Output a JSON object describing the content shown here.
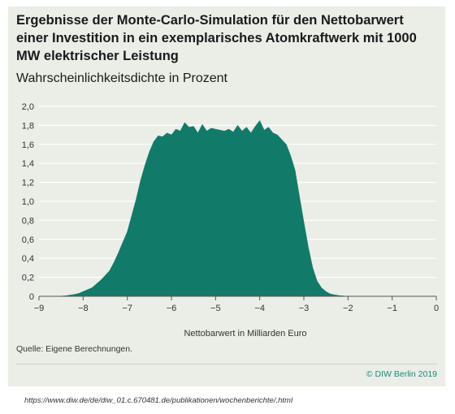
{
  "header": {
    "title": "Ergebnisse der Monte-Carlo-Simulation für den Nettobarwert einer Investition in ein exemplarisches Atomkraftwerk mit 1000 MW elektrischer Leistung",
    "subtitle": "Wahrscheinlichkeitsdichte in Prozent"
  },
  "footer": {
    "source": "Quelle: Eigene Berechnungen.",
    "credit": "© DIW Berlin 2019",
    "url": "https://www.diw.de/de/diw_01.c.670481.de/publikationen/wochenberichte/.html"
  },
  "colors": {
    "fill": "#127a69",
    "panel": "#eaeee7",
    "grid": "#ffffff",
    "credit": "#1b8a7a"
  },
  "chart_data": {
    "type": "area",
    "title": "",
    "xlabel": "Nettobarwert in Milliarden Euro",
    "ylabel": "Wahrscheinlichkeitsdichte in Prozent",
    "xlim": [
      -9,
      0
    ],
    "ylim": [
      0,
      2.0
    ],
    "grid": true,
    "x_ticks": [
      -9,
      -8,
      -7,
      -6,
      -5,
      -4,
      -3,
      -2,
      -1,
      0
    ],
    "x_tick_labels": [
      "−9",
      "−8",
      "−7",
      "−6",
      "−5",
      "−4",
      "−3",
      "−2",
      "−1",
      "0"
    ],
    "y_ticks": [
      0,
      0.2,
      0.4,
      0.6,
      0.8,
      1.0,
      1.2,
      1.4,
      1.6,
      1.8,
      2.0
    ],
    "y_tick_labels": [
      "0",
      "0,2",
      "0,4",
      "0,6",
      "0,8",
      "1,0",
      "1,2",
      "1,4",
      "1,6",
      "1,8",
      "2,0"
    ],
    "series": [
      {
        "x": [
          -9,
          -8.6,
          -8.4,
          -8.2,
          -8.1,
          -8.0,
          -7.9,
          -7.8,
          -7.7,
          -7.6,
          -7.5,
          -7.4,
          -7.3,
          -7.2,
          -7.1,
          -7.0,
          -6.9,
          -6.8,
          -6.7,
          -6.6,
          -6.5,
          -6.4,
          -6.3,
          -6.2,
          -6.1,
          -6.0,
          -5.9,
          -5.8,
          -5.7,
          -5.6,
          -5.5,
          -5.4,
          -5.3,
          -5.2,
          -5.1,
          -5.0,
          -4.9,
          -4.8,
          -4.7,
          -4.6,
          -4.5,
          -4.4,
          -4.3,
          -4.2,
          -4.1,
          -4.0,
          -3.9,
          -3.8,
          -3.7,
          -3.6,
          -3.5,
          -3.4,
          -3.3,
          -3.2,
          -3.1,
          -3.0,
          -2.9,
          -2.8,
          -2.7,
          -2.6,
          -2.5,
          -2.4,
          -2.3,
          -2.2,
          -2.1,
          -2.0,
          -1.8
        ],
        "y": [
          0,
          0,
          0.005,
          0.02,
          0.03,
          0.05,
          0.07,
          0.09,
          0.13,
          0.17,
          0.22,
          0.27,
          0.36,
          0.46,
          0.57,
          0.68,
          0.85,
          1.02,
          1.22,
          1.38,
          1.52,
          1.63,
          1.69,
          1.68,
          1.72,
          1.7,
          1.76,
          1.74,
          1.83,
          1.78,
          1.79,
          1.72,
          1.81,
          1.74,
          1.77,
          1.76,
          1.75,
          1.74,
          1.76,
          1.73,
          1.8,
          1.74,
          1.78,
          1.72,
          1.79,
          1.85,
          1.75,
          1.78,
          1.72,
          1.7,
          1.65,
          1.6,
          1.48,
          1.33,
          1.05,
          0.78,
          0.52,
          0.3,
          0.16,
          0.09,
          0.05,
          0.025,
          0.015,
          0.008,
          0.003,
          0,
          0
        ]
      }
    ]
  }
}
